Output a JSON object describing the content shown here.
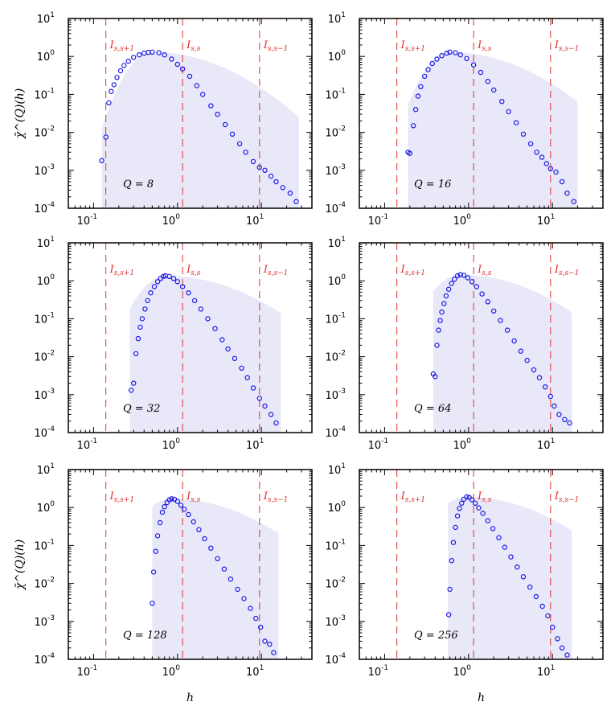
{
  "chart_data": {
    "type": "scatter",
    "x_scale": "log",
    "y_scale": "log",
    "xlim": [
      0.05,
      40
    ],
    "ylim": [
      0.0001,
      10
    ],
    "xlabel": "h",
    "ylabel": "χ̄^(Q)(h)",
    "x_tick_values": [
      0.1,
      1,
      10
    ],
    "x_tick_labels": [
      [
        "10",
        "-1"
      ],
      [
        "10",
        "0"
      ],
      [
        "10",
        "1"
      ]
    ],
    "y_tick_values": [
      0.0001,
      0.001,
      0.01,
      0.1,
      1,
      10
    ],
    "y_tick_labels": [
      [
        "10",
        "-4"
      ],
      [
        "10",
        "-3"
      ],
      [
        "10",
        "-2"
      ],
      [
        "10",
        "-1"
      ],
      [
        "10",
        "0"
      ],
      [
        "10",
        "1"
      ]
    ],
    "region_lines": [
      {
        "x": 0.14,
        "label": "I",
        "sub": "s,s+1"
      },
      {
        "x": 1.15,
        "label": "I",
        "sub": "s,s"
      },
      {
        "x": 9.5,
        "label": "I",
        "sub": "s,s−1"
      }
    ],
    "colors": {
      "points": "#1a1ae6",
      "fill": "#e8e8f8",
      "region": "#e03030"
    },
    "panels": [
      {
        "label": "Q = 8",
        "show_xlabel": false,
        "show_ylabel": true,
        "params": {
          "xmin": 0.125,
          "peak_x": 0.5,
          "peak_y": 1.3,
          "xmax": 28,
          "s_left": 1.3,
          "s_right": 2.6
        },
        "points": [
          [
            0.125,
            0.0018
          ],
          [
            0.14,
            0.0075
          ],
          [
            0.152,
            0.06
          ],
          [
            0.162,
            0.12
          ],
          [
            0.175,
            0.18
          ],
          [
            0.19,
            0.28
          ],
          [
            0.21,
            0.42
          ],
          [
            0.23,
            0.58
          ],
          [
            0.26,
            0.75
          ],
          [
            0.3,
            0.95
          ],
          [
            0.35,
            1.1
          ],
          [
            0.4,
            1.22
          ],
          [
            0.45,
            1.28
          ],
          [
            0.5,
            1.3
          ],
          [
            0.6,
            1.25
          ],
          [
            0.7,
            1.1
          ],
          [
            0.85,
            0.85
          ],
          [
            1.0,
            0.62
          ],
          [
            1.15,
            0.47
          ],
          [
            1.4,
            0.3
          ],
          [
            1.7,
            0.17
          ],
          [
            2.0,
            0.1
          ],
          [
            2.5,
            0.05
          ],
          [
            3.0,
            0.03
          ],
          [
            3.7,
            0.016
          ],
          [
            4.5,
            0.009
          ],
          [
            5.5,
            0.005
          ],
          [
            6.5,
            0.003
          ],
          [
            8.0,
            0.0017
          ],
          [
            9.5,
            0.0012
          ],
          [
            11,
            0.001
          ],
          [
            13,
            0.0007
          ],
          [
            15,
            0.0005
          ],
          [
            18,
            0.00035
          ],
          [
            22,
            0.00025
          ],
          [
            26,
            0.00015
          ]
        ]
      },
      {
        "label": "Q = 16",
        "show_xlabel": false,
        "show_ylabel": false,
        "params": {
          "xmin": 0.19,
          "peak_x": 0.6,
          "peak_y": 1.3,
          "xmax": 20,
          "s_left": 1.3,
          "s_right": 2.6
        },
        "points": [
          [
            0.19,
            0.003
          ],
          [
            0.2,
            0.0028
          ],
          [
            0.22,
            0.015
          ],
          [
            0.235,
            0.04
          ],
          [
            0.25,
            0.09
          ],
          [
            0.27,
            0.16
          ],
          [
            0.3,
            0.3
          ],
          [
            0.33,
            0.45
          ],
          [
            0.37,
            0.65
          ],
          [
            0.42,
            0.85
          ],
          [
            0.48,
            1.05
          ],
          [
            0.55,
            1.22
          ],
          [
            0.6,
            1.3
          ],
          [
            0.7,
            1.25
          ],
          [
            0.8,
            1.1
          ],
          [
            0.95,
            0.88
          ],
          [
            1.15,
            0.6
          ],
          [
            1.4,
            0.38
          ],
          [
            1.7,
            0.22
          ],
          [
            2.0,
            0.13
          ],
          [
            2.5,
            0.065
          ],
          [
            3.0,
            0.035
          ],
          [
            3.7,
            0.018
          ],
          [
            4.5,
            0.009
          ],
          [
            5.5,
            0.005
          ],
          [
            6.5,
            0.003
          ],
          [
            7.5,
            0.0022
          ],
          [
            8.5,
            0.0015
          ],
          [
            9.5,
            0.0011
          ],
          [
            11,
            0.0009
          ],
          [
            13,
            0.0005
          ],
          [
            15,
            0.00025
          ],
          [
            18,
            0.00015
          ]
        ]
      },
      {
        "label": "Q = 32",
        "show_xlabel": false,
        "show_ylabel": false,
        "params": {
          "xmin": 0.27,
          "peak_x": 0.72,
          "peak_y": 1.35,
          "xmax": 17,
          "s_left": 1.4,
          "s_right": 2.7
        },
        "points": [
          [
            0.28,
            0.0013
          ],
          [
            0.3,
            0.002
          ],
          [
            0.32,
            0.012
          ],
          [
            0.34,
            0.03
          ],
          [
            0.36,
            0.06
          ],
          [
            0.38,
            0.1
          ],
          [
            0.41,
            0.18
          ],
          [
            0.44,
            0.3
          ],
          [
            0.48,
            0.48
          ],
          [
            0.53,
            0.7
          ],
          [
            0.58,
            0.95
          ],
          [
            0.63,
            1.15
          ],
          [
            0.68,
            1.3
          ],
          [
            0.72,
            1.35
          ],
          [
            0.8,
            1.3
          ],
          [
            0.9,
            1.15
          ],
          [
            1.0,
            0.95
          ],
          [
            1.15,
            0.7
          ],
          [
            1.35,
            0.48
          ],
          [
            1.6,
            0.3
          ],
          [
            1.9,
            0.18
          ],
          [
            2.3,
            0.1
          ],
          [
            2.8,
            0.055
          ],
          [
            3.4,
            0.028
          ],
          [
            4.0,
            0.016
          ],
          [
            4.8,
            0.009
          ],
          [
            5.8,
            0.005
          ],
          [
            6.8,
            0.0028
          ],
          [
            8.0,
            0.0015
          ],
          [
            9.5,
            0.0008
          ],
          [
            11,
            0.0005
          ],
          [
            13,
            0.0003
          ],
          [
            15,
            0.00018
          ]
        ]
      },
      {
        "label": "Q = 64",
        "show_xlabel": false,
        "show_ylabel": false,
        "params": {
          "xmin": 0.38,
          "peak_x": 0.8,
          "peak_y": 1.45,
          "xmax": 17,
          "s_left": 1.5,
          "s_right": 2.6
        },
        "points": [
          [
            0.38,
            0.0035
          ],
          [
            0.4,
            0.003
          ],
          [
            0.42,
            0.02
          ],
          [
            0.44,
            0.05
          ],
          [
            0.46,
            0.09
          ],
          [
            0.48,
            0.15
          ],
          [
            0.51,
            0.25
          ],
          [
            0.54,
            0.4
          ],
          [
            0.58,
            0.6
          ],
          [
            0.63,
            0.85
          ],
          [
            0.68,
            1.1
          ],
          [
            0.74,
            1.35
          ],
          [
            0.8,
            1.45
          ],
          [
            0.88,
            1.4
          ],
          [
            0.98,
            1.2
          ],
          [
            1.1,
            0.95
          ],
          [
            1.25,
            0.7
          ],
          [
            1.45,
            0.45
          ],
          [
            1.7,
            0.28
          ],
          [
            2.0,
            0.16
          ],
          [
            2.4,
            0.09
          ],
          [
            2.9,
            0.05
          ],
          [
            3.5,
            0.026
          ],
          [
            4.2,
            0.014
          ],
          [
            5.0,
            0.008
          ],
          [
            6.0,
            0.0045
          ],
          [
            7.0,
            0.0028
          ],
          [
            8.2,
            0.0016
          ],
          [
            9.5,
            0.0009
          ],
          [
            10.5,
            0.0005
          ],
          [
            12,
            0.0003
          ],
          [
            14,
            0.00022
          ],
          [
            16,
            0.00018
          ]
        ]
      },
      {
        "label": "Q = 128",
        "show_xlabel": true,
        "show_ylabel": true,
        "params": {
          "xmin": 0.5,
          "peak_x": 0.85,
          "peak_y": 1.7,
          "xmax": 16,
          "s_left": 1.6,
          "s_right": 2.6
        },
        "points": [
          [
            0.5,
            0.003
          ],
          [
            0.52,
            0.02
          ],
          [
            0.55,
            0.07
          ],
          [
            0.58,
            0.18
          ],
          [
            0.62,
            0.4
          ],
          [
            0.66,
            0.75
          ],
          [
            0.7,
            1.05
          ],
          [
            0.75,
            1.35
          ],
          [
            0.8,
            1.6
          ],
          [
            0.85,
            1.7
          ],
          [
            0.92,
            1.65
          ],
          [
            1.0,
            1.45
          ],
          [
            1.1,
            1.15
          ],
          [
            1.2,
            0.9
          ],
          [
            1.35,
            0.65
          ],
          [
            1.55,
            0.42
          ],
          [
            1.8,
            0.26
          ],
          [
            2.1,
            0.15
          ],
          [
            2.5,
            0.085
          ],
          [
            3.0,
            0.045
          ],
          [
            3.6,
            0.024
          ],
          [
            4.3,
            0.013
          ],
          [
            5.2,
            0.007
          ],
          [
            6.2,
            0.004
          ],
          [
            7.4,
            0.0022
          ],
          [
            8.6,
            0.0012
          ],
          [
            9.8,
            0.0007
          ],
          [
            11,
            0.0003
          ],
          [
            12.5,
            0.00025
          ],
          [
            14,
            0.00015
          ]
        ]
      },
      {
        "label": "Q = 256",
        "show_xlabel": true,
        "show_ylabel": false,
        "params": {
          "xmin": 0.57,
          "peak_x": 0.95,
          "peak_y": 1.9,
          "xmax": 17,
          "s_left": 1.7,
          "s_right": 2.6
        },
        "points": [
          [
            0.58,
            0.0015
          ],
          [
            0.6,
            0.007
          ],
          [
            0.63,
            0.04
          ],
          [
            0.66,
            0.12
          ],
          [
            0.7,
            0.3
          ],
          [
            0.74,
            0.6
          ],
          [
            0.78,
            0.95
          ],
          [
            0.83,
            1.3
          ],
          [
            0.88,
            1.65
          ],
          [
            0.95,
            1.9
          ],
          [
            1.02,
            1.85
          ],
          [
            1.1,
            1.6
          ],
          [
            1.2,
            1.3
          ],
          [
            1.32,
            0.98
          ],
          [
            1.48,
            0.7
          ],
          [
            1.7,
            0.45
          ],
          [
            1.95,
            0.28
          ],
          [
            2.3,
            0.16
          ],
          [
            2.7,
            0.09
          ],
          [
            3.2,
            0.05
          ],
          [
            3.8,
            0.027
          ],
          [
            4.5,
            0.015
          ],
          [
            5.4,
            0.008
          ],
          [
            6.4,
            0.0045
          ],
          [
            7.6,
            0.0025
          ],
          [
            8.8,
            0.0014
          ],
          [
            10,
            0.0007
          ],
          [
            11.5,
            0.00035
          ],
          [
            13,
            0.0002
          ],
          [
            15,
            0.00013
          ]
        ]
      }
    ]
  }
}
